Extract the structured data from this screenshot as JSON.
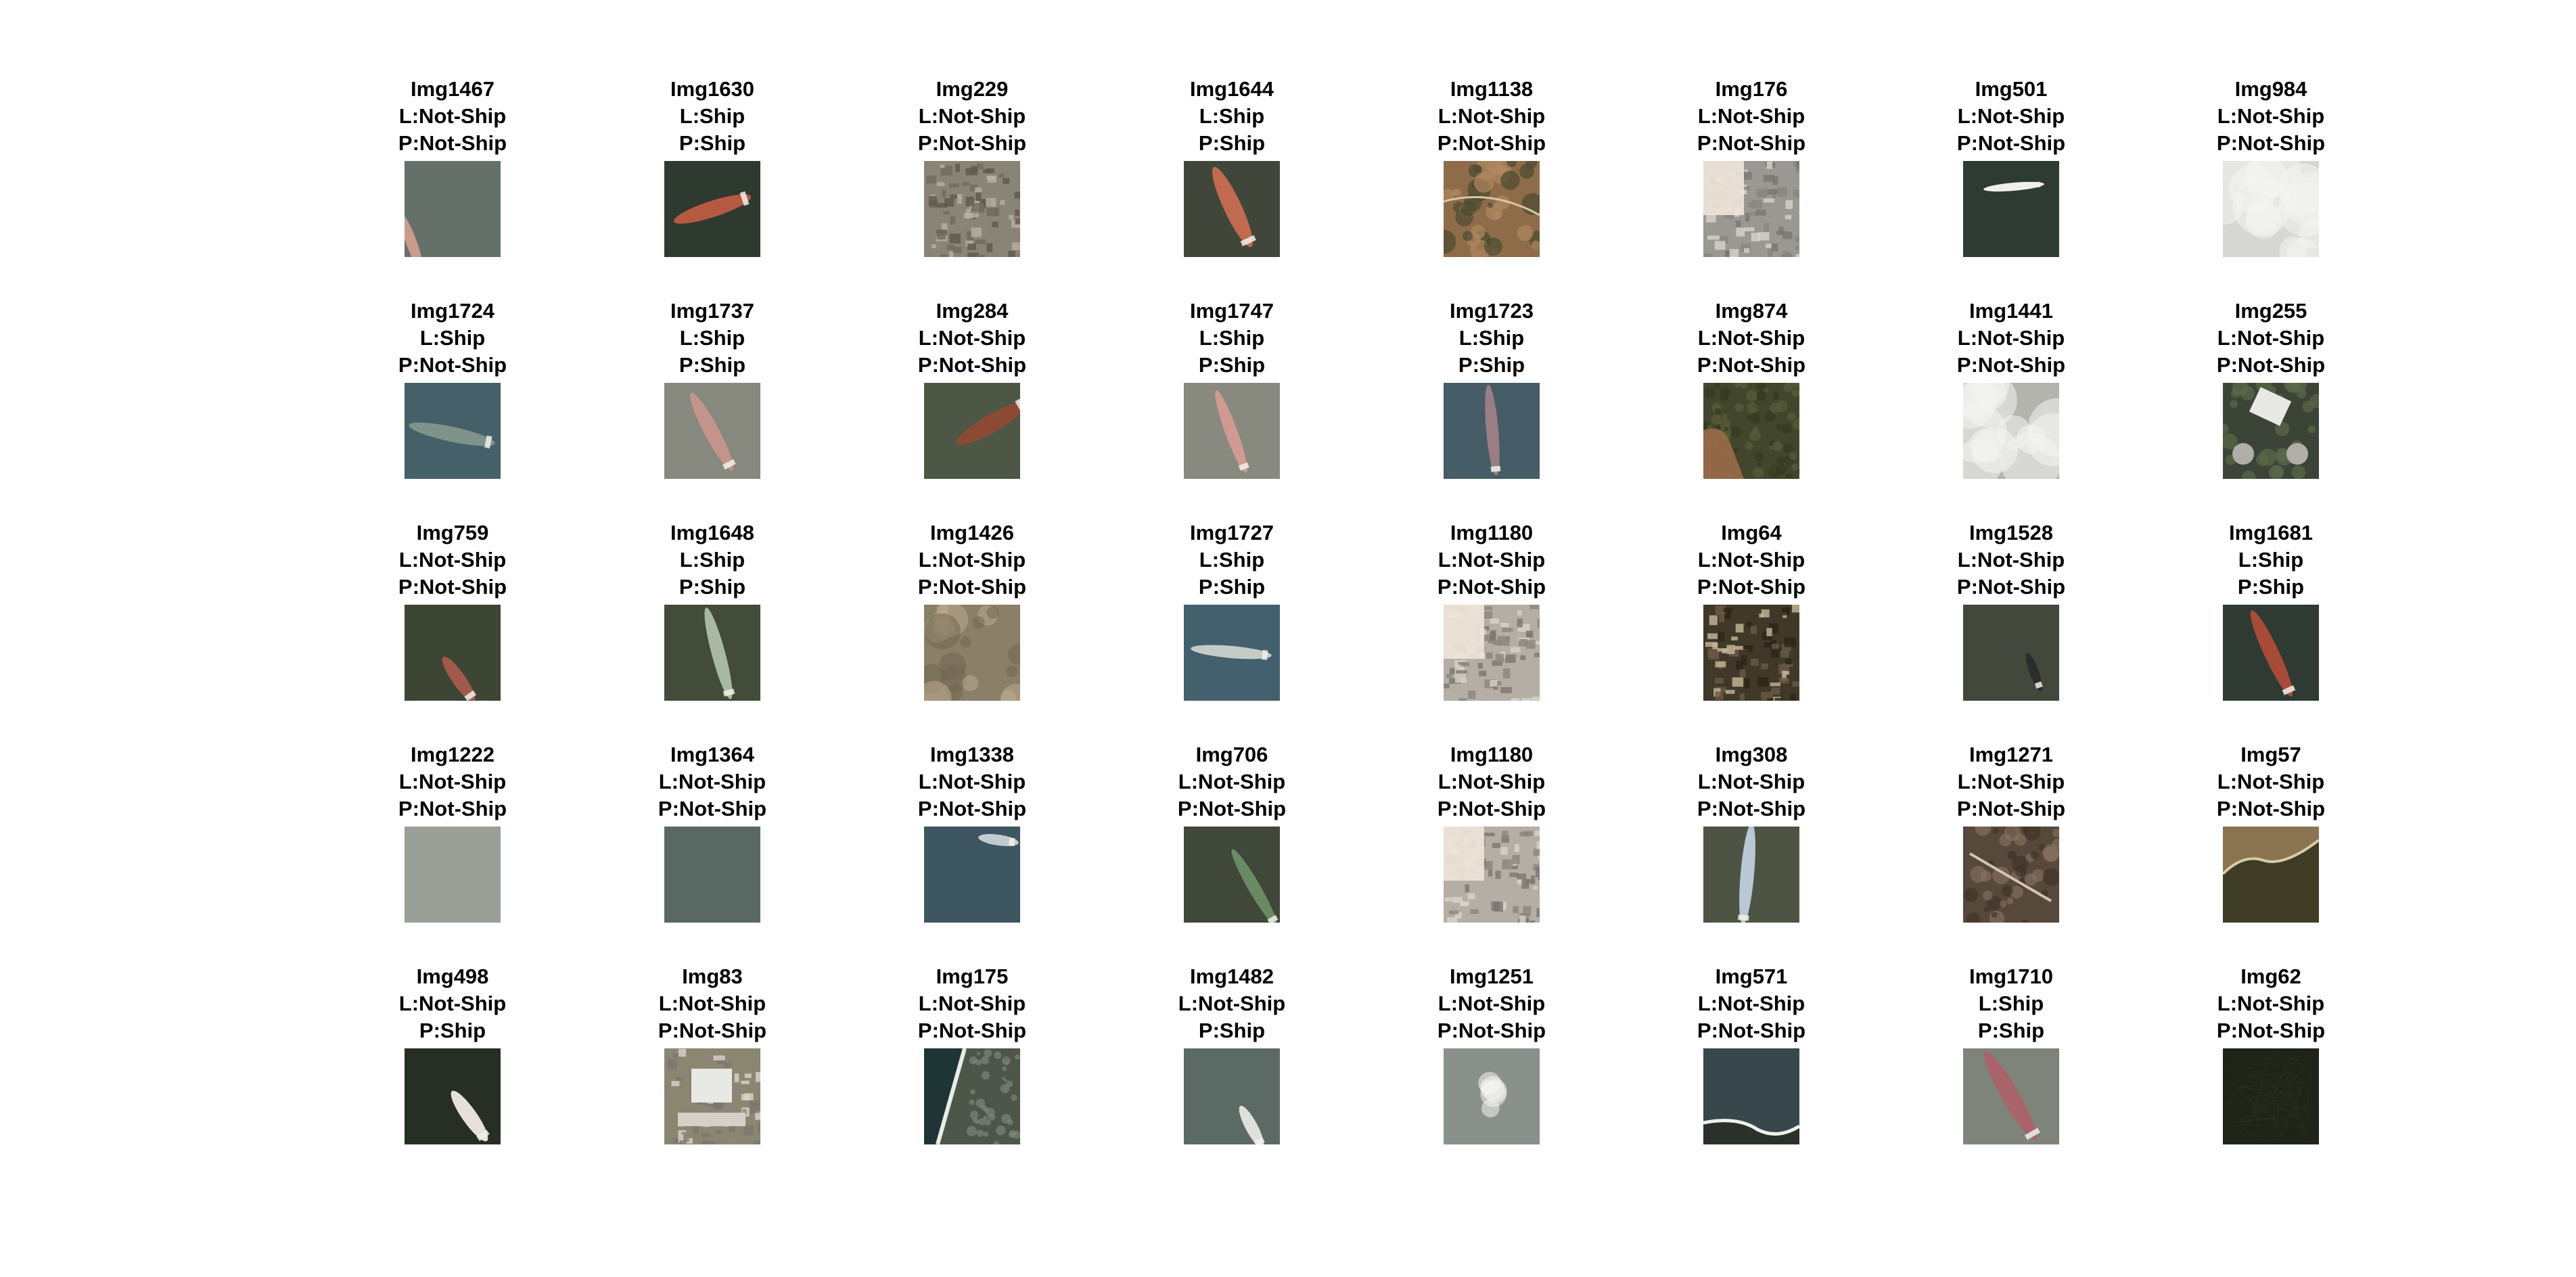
{
  "tiles": [
    {
      "id": "Img1467",
      "label": "L:Not-Ship",
      "pred": "P:Not-Ship"
    },
    {
      "id": "Img1630",
      "label": "L:Ship",
      "pred": "P:Ship"
    },
    {
      "id": "Img229",
      "label": "L:Not-Ship",
      "pred": "P:Not-Ship"
    },
    {
      "id": "Img1644",
      "label": "L:Ship",
      "pred": "P:Ship"
    },
    {
      "id": "Img1138",
      "label": "L:Not-Ship",
      "pred": "P:Not-Ship"
    },
    {
      "id": "Img176",
      "label": "L:Not-Ship",
      "pred": "P:Not-Ship"
    },
    {
      "id": "Img501",
      "label": "L:Not-Ship",
      "pred": "P:Not-Ship"
    },
    {
      "id": "Img984",
      "label": "L:Not-Ship",
      "pred": "P:Not-Ship"
    },
    {
      "id": "Img1724",
      "label": "L:Ship",
      "pred": "P:Not-Ship"
    },
    {
      "id": "Img1737",
      "label": "L:Ship",
      "pred": "P:Ship"
    },
    {
      "id": "Img284",
      "label": "L:Not-Ship",
      "pred": "P:Not-Ship"
    },
    {
      "id": "Img1747",
      "label": "L:Ship",
      "pred": "P:Ship"
    },
    {
      "id": "Img1723",
      "label": "L:Ship",
      "pred": "P:Ship"
    },
    {
      "id": "Img874",
      "label": "L:Not-Ship",
      "pred": "P:Not-Ship"
    },
    {
      "id": "Img1441",
      "label": "L:Not-Ship",
      "pred": "P:Not-Ship"
    },
    {
      "id": "Img255",
      "label": "L:Not-Ship",
      "pred": "P:Not-Ship"
    },
    {
      "id": "Img759",
      "label": "L:Not-Ship",
      "pred": "P:Not-Ship"
    },
    {
      "id": "Img1648",
      "label": "L:Ship",
      "pred": "P:Ship"
    },
    {
      "id": "Img1426",
      "label": "L:Not-Ship",
      "pred": "P:Not-Ship"
    },
    {
      "id": "Img1727",
      "label": "L:Ship",
      "pred": "P:Ship"
    },
    {
      "id": "Img1180",
      "label": "L:Not-Ship",
      "pred": "P:Not-Ship"
    },
    {
      "id": "Img64",
      "label": "L:Not-Ship",
      "pred": "P:Not-Ship"
    },
    {
      "id": "Img1528",
      "label": "L:Not-Ship",
      "pred": "P:Not-Ship"
    },
    {
      "id": "Img1681",
      "label": "L:Ship",
      "pred": "P:Ship"
    },
    {
      "id": "Img1222",
      "label": "L:Not-Ship",
      "pred": "P:Not-Ship"
    },
    {
      "id": "Img1364",
      "label": "L:Not-Ship",
      "pred": "P:Not-Ship"
    },
    {
      "id": "Img1338",
      "label": "L:Not-Ship",
      "pred": "P:Not-Ship"
    },
    {
      "id": "Img706",
      "label": "L:Not-Ship",
      "pred": "P:Not-Ship"
    },
    {
      "id": "Img1180",
      "label": "L:Not-Ship",
      "pred": "P:Not-Ship"
    },
    {
      "id": "Img308",
      "label": "L:Not-Ship",
      "pred": "P:Not-Ship"
    },
    {
      "id": "Img1271",
      "label": "L:Not-Ship",
      "pred": "P:Not-Ship"
    },
    {
      "id": "Img57",
      "label": "L:Not-Ship",
      "pred": "P:Not-Ship"
    },
    {
      "id": "Img498",
      "label": "L:Not-Ship",
      "pred": "P:Ship"
    },
    {
      "id": "Img83",
      "label": "L:Not-Ship",
      "pred": "P:Not-Ship"
    },
    {
      "id": "Img175",
      "label": "L:Not-Ship",
      "pred": "P:Not-Ship"
    },
    {
      "id": "Img1482",
      "label": "L:Not-Ship",
      "pred": "P:Ship"
    },
    {
      "id": "Img1251",
      "label": "L:Not-Ship",
      "pred": "P:Not-Ship"
    },
    {
      "id": "Img571",
      "label": "L:Not-Ship",
      "pred": "P:Not-Ship"
    },
    {
      "id": "Img1710",
      "label": "L:Ship",
      "pred": "P:Ship"
    },
    {
      "id": "Img62",
      "label": "L:Not-Ship",
      "pred": "P:Not-Ship"
    }
  ]
}
